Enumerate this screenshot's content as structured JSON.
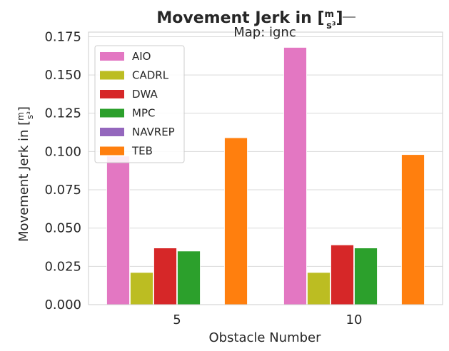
{
  "chart_data": {
    "type": "bar",
    "title": "Movement Jerk in [m/s³]",
    "subtitle": "Map: ignc",
    "xlabel": "Obstacle Number",
    "ylabel": "Movement Jerk in [m/s³]",
    "categories": [
      "5",
      "10"
    ],
    "ylim": [
      0,
      0.178
    ],
    "yticks": [
      "0.000",
      "0.025",
      "0.050",
      "0.075",
      "0.100",
      "0.125",
      "0.150",
      "0.175"
    ],
    "grid": true,
    "legend_position": "top-left",
    "series": [
      {
        "name": "AIO",
        "color": "#e377c2",
        "values": [
          0.097,
          0.168
        ]
      },
      {
        "name": "CADRL",
        "color": "#bcbd22",
        "values": [
          0.021,
          0.021
        ]
      },
      {
        "name": "DWA",
        "color": "#d62728",
        "values": [
          0.037,
          0.039
        ]
      },
      {
        "name": "MPC",
        "color": "#2ca02c",
        "values": [
          0.035,
          0.037
        ]
      },
      {
        "name": "NAVREP",
        "color": "#9467bd",
        "values": [
          0,
          0
        ]
      },
      {
        "name": "TEB",
        "color": "#ff7f0e",
        "values": [
          0.109,
          0.098
        ]
      }
    ]
  }
}
